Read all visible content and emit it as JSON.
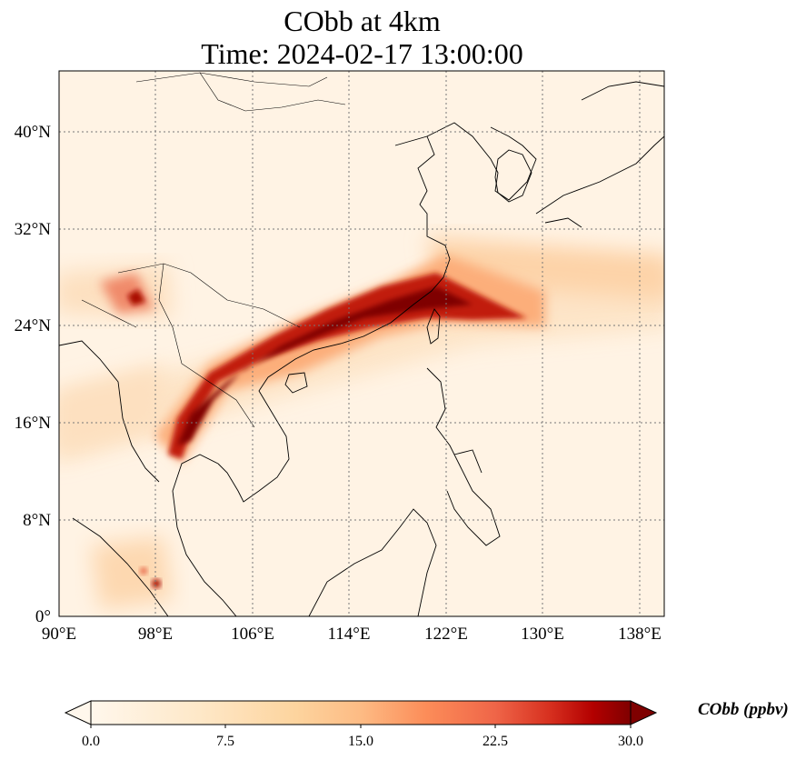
{
  "title_line1": "CObb at 4km",
  "title_line2": "Time: 2024-02-17 13:00:00",
  "map": {
    "lon_ticks": [
      "90°E",
      "98°E",
      "106°E",
      "114°E",
      "122°E",
      "130°E",
      "138°E"
    ],
    "lat_ticks": [
      "0°",
      "8°N",
      "16°N",
      "24°N",
      "32°N",
      "40°N"
    ],
    "lon_range_deg": [
      90,
      140
    ],
    "lat_range_deg": [
      0,
      45
    ],
    "gridlines": "dotted",
    "plume": "high CObb band from the Thailand–Myanmar border across south China to Taiwan and east over the Pacific"
  },
  "colorbar": {
    "ticks": [
      "0.0",
      "7.5",
      "15.0",
      "22.5",
      "30.0"
    ],
    "range": [
      0,
      30
    ],
    "extend": "both",
    "colormap": "OrRd",
    "label": "CObb (ppbv)"
  },
  "colors": {
    "low": "#fff7ec",
    "mid": "#fdbb84",
    "high": "#d7301f",
    "max": "#7f0000"
  }
}
